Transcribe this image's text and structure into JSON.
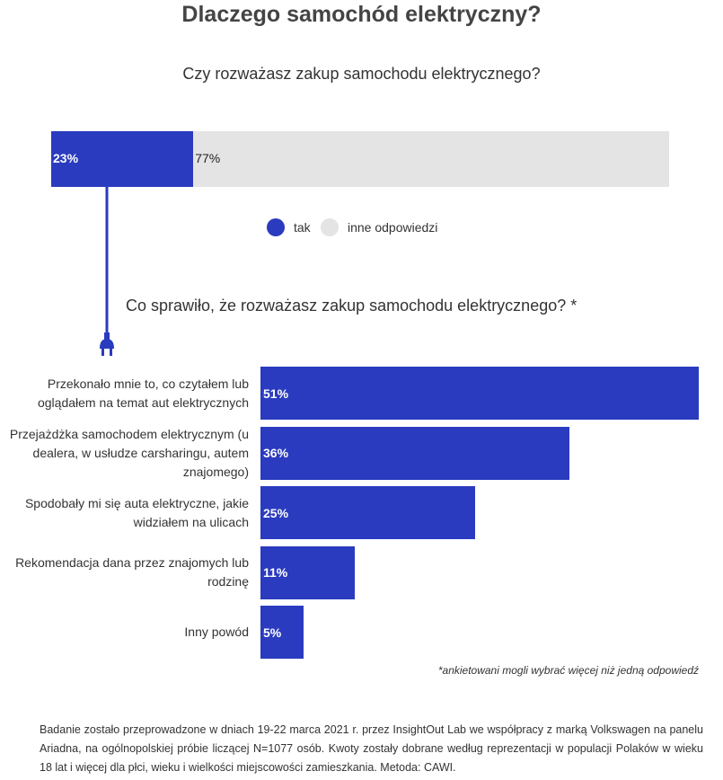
{
  "title": "Dlaczego samochód elektryczny?",
  "question1": "Czy rozważasz zakup samochodu elektrycznego?",
  "question2": "Co sprawiło, że rozważasz zakup samochodu elektrycznego? *",
  "colors": {
    "primary": "#2a3bbf",
    "other": "#e4e4e4"
  },
  "icons": {
    "connector": "plug-icon"
  },
  "chart_data": [
    {
      "type": "bar",
      "stacked": true,
      "orientation": "horizontal",
      "series": [
        {
          "name": "tak",
          "values": [
            23
          ],
          "label": "23%"
        },
        {
          "name": "inne odpowiedzi",
          "values": [
            77
          ],
          "label": "77%"
        }
      ],
      "legend": "bottom-center",
      "xlim": [
        0,
        100
      ]
    },
    {
      "type": "bar",
      "orientation": "horizontal",
      "categories": [
        "Przekonało mnie to, co czytałem lub oglądałem na temat aut elektrycznych",
        "Przejażdżka samochodem elektrycznym (u dealera, w usłudze carsharingu, autem znajomego)",
        "Spodobały mi się auta elektryczne, jakie widziałem na ulicach",
        "Rekomendacja dana przez znajomych lub rodzinę",
        "Inny powód"
      ],
      "values": [
        51,
        36,
        25,
        11,
        5
      ],
      "labels": [
        "51%",
        "36%",
        "25%",
        "11%",
        "5%"
      ]
    }
  ],
  "footnote": "*ankietowani mogli wybrać więcej niż jedną odpowiedź",
  "footer": "Badanie zostało przeprowadzone w dniach 19-22 marca 2021 r. przez InsightOut Lab we współpracy z marką Volkswagen na panelu Ariadna, na ogólnopolskiej próbie liczącej N=1077 osób. Kwoty zostały dobrane według reprezentacji w populacji Polaków w wieku 18 lat i więcej dla płci, wieku i wielkości miejscowości zamieszkania. Metoda: CAWI."
}
